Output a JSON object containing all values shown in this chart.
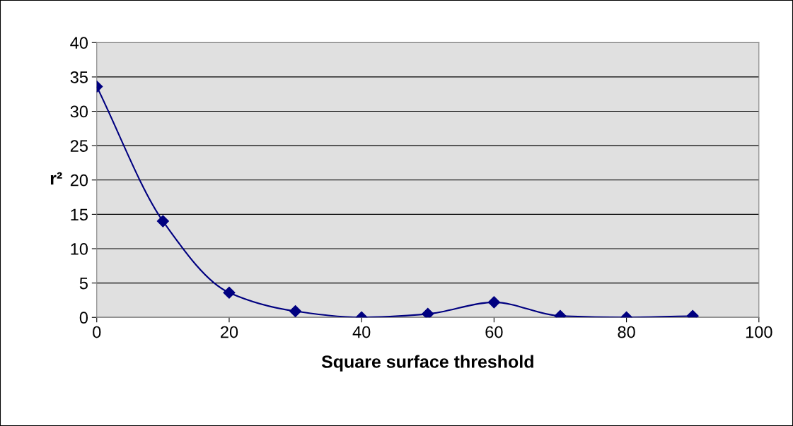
{
  "chart_data": {
    "type": "line",
    "xlabel": "Square surface threshold",
    "ylabel": "r²",
    "x": [
      0,
      10,
      20,
      30,
      40,
      50,
      60,
      70,
      80,
      90
    ],
    "series": [
      {
        "color": "#000080",
        "values": [
          33.6,
          14.0,
          3.6,
          0.9,
          0.0,
          0.5,
          2.2,
          0.2,
          0.0,
          0.2
        ]
      }
    ],
    "xlim": [
      0,
      100
    ],
    "xticks": [
      0,
      20,
      40,
      60,
      80,
      100
    ],
    "ylim": [
      0,
      40
    ],
    "yticks": [
      0,
      5,
      10,
      15,
      20,
      25,
      30,
      35,
      40
    ],
    "grid": "y",
    "marker": "diamond",
    "line_style": "solid",
    "legend": false
  }
}
